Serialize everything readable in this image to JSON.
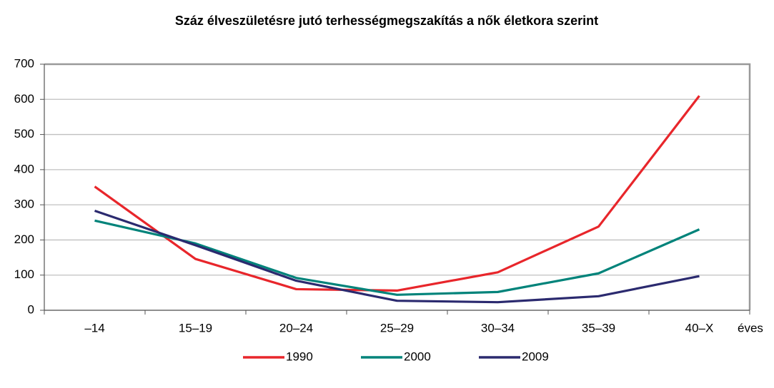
{
  "chart_data": {
    "type": "line",
    "title": "Száz élveszületésre jutó terhességmegszakítás a nők életkora szerint",
    "x_label": "éves",
    "categories": [
      "–14",
      "15–19",
      "20–24",
      "25–29",
      "30–34",
      "35–39",
      "40–X"
    ],
    "series": [
      {
        "name": "1990",
        "color": "#e8262b",
        "values": [
          352,
          146,
          60,
          56,
          108,
          238,
          610
        ]
      },
      {
        "name": "2000",
        "color": "#00837a",
        "values": [
          255,
          190,
          92,
          44,
          52,
          105,
          230
        ]
      },
      {
        "name": "2009",
        "color": "#2b2a6f",
        "values": [
          283,
          185,
          84,
          27,
          23,
          40,
          97
        ]
      }
    ],
    "ylim": [
      0,
      700
    ],
    "yticks": [
      0,
      100,
      200,
      300,
      400,
      500,
      600,
      700
    ],
    "grid": true
  }
}
